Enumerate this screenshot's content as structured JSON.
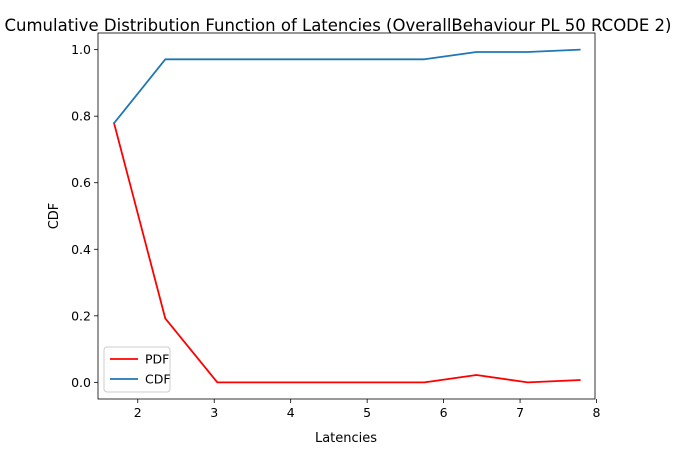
{
  "chart_data": {
    "type": "line",
    "title": "Cumulative Distribution Function of Latencies (OverallBehaviour PL 50 RCODE 2)",
    "xlabel": "Latencies",
    "ylabel": "CDF",
    "xlim": [
      1.48,
      7.98
    ],
    "ylim": [
      -0.05,
      1.05
    ],
    "xticks": [
      2,
      3,
      4,
      5,
      6,
      7,
      8
    ],
    "yticks": [
      0.0,
      0.2,
      0.4,
      0.6,
      0.8,
      1.0
    ],
    "xtick_labels": [
      "2",
      "3",
      "4",
      "5",
      "6",
      "7",
      "8"
    ],
    "ytick_labels": [
      "0.0",
      "0.2",
      "0.4",
      "0.6",
      "0.8",
      "1.0"
    ],
    "grid": false,
    "legend_position": "lower-left",
    "x": [
      1.69,
      2.36,
      3.04,
      3.72,
      4.4,
      5.07,
      5.75,
      6.43,
      7.1,
      7.78
    ],
    "series": [
      {
        "name": "PDF",
        "color": "#ff0000",
        "values": [
          0.779,
          0.192,
          0.0,
          0.0,
          0.0,
          0.0,
          0.0,
          0.022,
          0.0,
          0.007
        ]
      },
      {
        "name": "CDF",
        "color": "#1f77b4",
        "values": [
          0.779,
          0.971,
          0.971,
          0.971,
          0.971,
          0.971,
          0.971,
          0.993,
          0.993,
          1.0
        ]
      }
    ]
  }
}
